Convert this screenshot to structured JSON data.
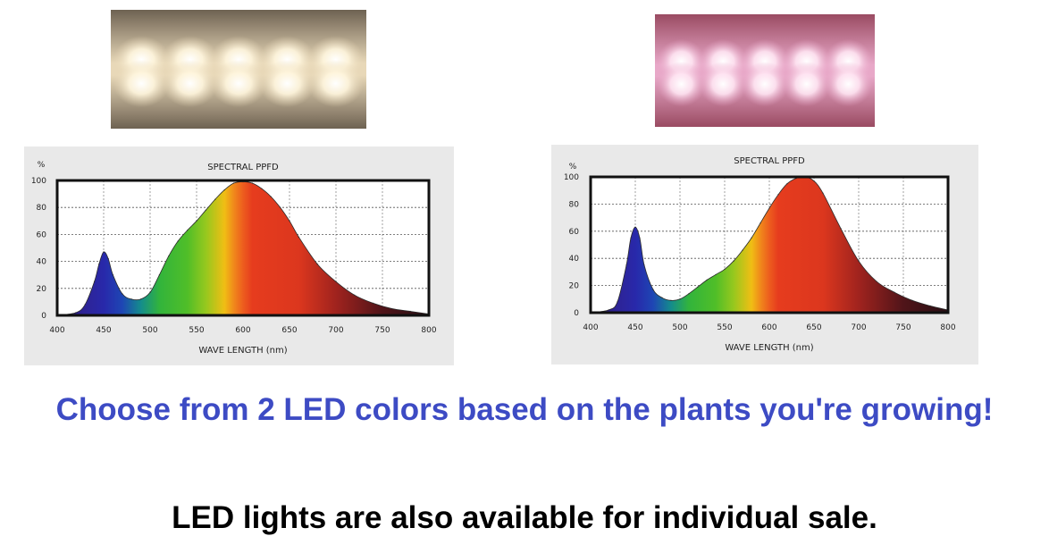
{
  "headline": "Choose from 2 LED colors based on the plants you're growing!",
  "footnote": "LED lights are also available for individual sale.",
  "photos": [
    {
      "name": "white-led-strip-photo",
      "background": "#6e6252",
      "glow": "#fff6de",
      "tint": "#e8d8b8"
    },
    {
      "name": "pink-led-strip-photo",
      "background": "#9a4b62",
      "glow": "#ffe6f3",
      "tint": "#e8a8c8"
    }
  ],
  "chart_data": [
    {
      "type": "area",
      "title": "SPECTRAL PPFD",
      "xlabel": "WAVE LENGTH (nm)",
      "ylabel": "%",
      "xlim": [
        400,
        800
      ],
      "ylim": [
        0,
        100
      ],
      "xticks": [
        400,
        450,
        500,
        550,
        600,
        650,
        700,
        750,
        800
      ],
      "yticks": [
        0,
        20,
        40,
        60,
        80,
        100
      ],
      "grid": true,
      "x": [
        400,
        420,
        430,
        440,
        445,
        450,
        455,
        460,
        470,
        480,
        490,
        500,
        510,
        520,
        530,
        540,
        550,
        560,
        570,
        580,
        590,
        600,
        610,
        620,
        630,
        640,
        650,
        660,
        680,
        700,
        720,
        740,
        760,
        780,
        800
      ],
      "y": [
        0,
        2,
        8,
        25,
        38,
        47,
        42,
        30,
        16,
        12,
        12,
        17,
        30,
        44,
        55,
        63,
        70,
        78,
        86,
        93,
        98,
        99,
        98,
        94,
        88,
        80,
        70,
        58,
        38,
        25,
        15,
        9,
        5,
        3,
        1
      ]
    },
    {
      "type": "area",
      "title": "SPECTRAL PPFD",
      "xlabel": "WAVE LENGTH (nm)",
      "ylabel": "%",
      "xlim": [
        400,
        800
      ],
      "ylim": [
        0,
        100
      ],
      "xticks": [
        400,
        450,
        500,
        550,
        600,
        650,
        700,
        750,
        800
      ],
      "yticks": [
        0,
        20,
        40,
        60,
        80,
        100
      ],
      "grid": true,
      "x": [
        400,
        420,
        430,
        440,
        445,
        450,
        455,
        460,
        470,
        480,
        490,
        500,
        510,
        520,
        530,
        540,
        550,
        560,
        570,
        580,
        590,
        600,
        610,
        620,
        630,
        640,
        650,
        660,
        680,
        700,
        720,
        740,
        760,
        780,
        800
      ],
      "y": [
        0,
        2,
        8,
        35,
        55,
        63,
        55,
        35,
        17,
        11,
        9,
        10,
        14,
        19,
        24,
        28,
        32,
        38,
        46,
        55,
        66,
        77,
        87,
        95,
        99,
        100,
        97,
        88,
        62,
        38,
        23,
        15,
        9,
        5,
        2
      ]
    }
  ]
}
